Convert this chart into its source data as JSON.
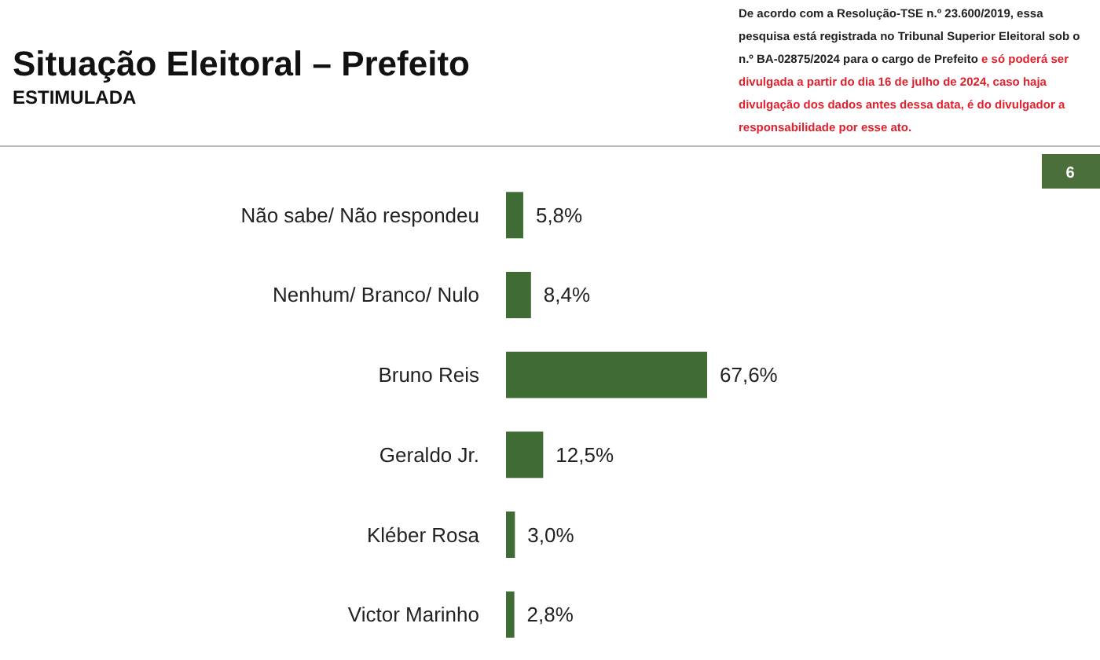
{
  "chart_data": {
    "type": "bar",
    "orientation": "horizontal",
    "title": "Situação Eleitoral – Prefeito",
    "subtitle": "ESTIMULADA",
    "categories": [
      "Não sabe/ Não respondeu",
      "Nenhum/ Branco/ Nulo",
      "Bruno Reis",
      "Geraldo Jr.",
      "Kléber Rosa",
      "Victor Marinho"
    ],
    "values": [
      5.8,
      8.4,
      67.6,
      12.5,
      3.0,
      2.8
    ],
    "value_labels": [
      "5,8%",
      "8,4%",
      "67,6%",
      "12,5%",
      "3,0%",
      "2,8%"
    ],
    "color": "#3f6b35",
    "annotations": [
      "De acordo com a Resolução-TSE n.º 23.600/2019, essa pesquisa está registrada no Tribunal Superior Eleitoral sob o n.º BA-02875/2024 para o cargo de Prefeito",
      "e só poderá ser divulgada a partir do dia 16 de julho de 2024, caso haja divulgação dos dados antes dessa data, é do divulgador a responsabilidade por esse ato.",
      "6"
    ]
  }
}
